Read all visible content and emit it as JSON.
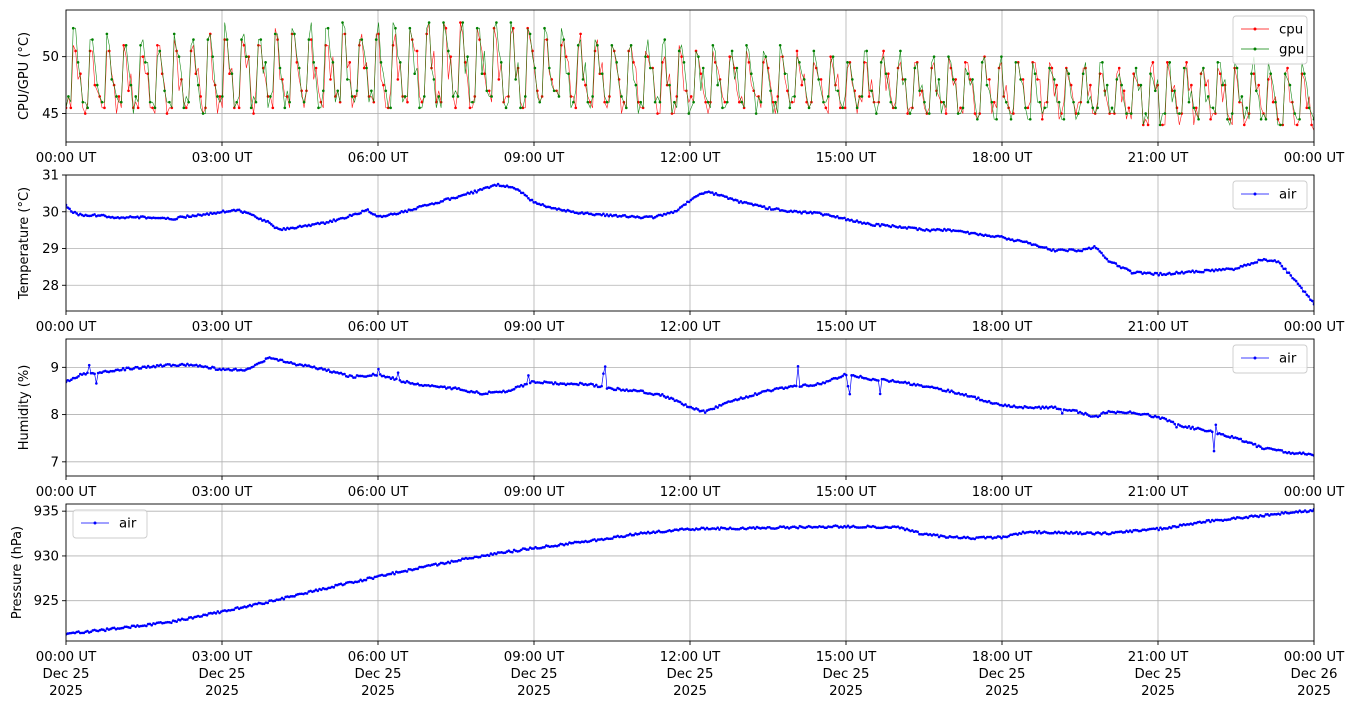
{
  "figure": {
    "background": "#ffffff",
    "grid": true,
    "colors": {
      "cpu": "#ff0000",
      "gpu": "#008000",
      "air": "#0000ff",
      "grid": "#b0b0b0",
      "axes": "#000000"
    }
  },
  "x_axis": {
    "range_hours": [
      0,
      24
    ],
    "tick_hours": [
      0,
      3,
      6,
      9,
      12,
      15,
      18,
      21,
      24
    ],
    "tick_time_labels": [
      "00:00 UT",
      "03:00 UT",
      "06:00 UT",
      "09:00 UT",
      "12:00 UT",
      "15:00 UT",
      "18:00 UT",
      "21:00 UT",
      "00:00 UT"
    ],
    "tick_date_labels": [
      "Dec 25",
      "Dec 25",
      "Dec 25",
      "Dec 25",
      "Dec 25",
      "Dec 25",
      "Dec 25",
      "Dec 25",
      "Dec 26"
    ],
    "tick_year_labels": [
      "2025",
      "2025",
      "2025",
      "2025",
      "2025",
      "2025",
      "2025",
      "2025",
      "2025"
    ]
  },
  "chart_data": [
    {
      "type": "line",
      "ylabel": "CPU/GPU (°C)",
      "ylim": [
        42.5,
        54.1
      ],
      "yticks": [
        45,
        50
      ],
      "ytick_labels": [
        "45",
        "50"
      ],
      "legend_position": "top-right",
      "grid": true,
      "x": [
        0,
        1.5,
        3,
        4.5,
        6,
        7.5,
        9,
        10.5,
        12,
        13.5,
        15,
        16.5,
        18,
        19.5,
        21,
        22.5,
        24
      ],
      "series": [
        {
          "name": "cpu",
          "color": "#ff0000",
          "low": [
            45,
            45,
            45,
            45.5,
            45.5,
            45.5,
            45.5,
            45,
            45,
            45,
            45,
            44.5,
            44.5,
            44.5,
            44,
            44,
            43.5
          ],
          "high": [
            51.5,
            51,
            52.5,
            52.5,
            52.5,
            53,
            53,
            51.5,
            51,
            50.5,
            50.5,
            50.5,
            50,
            49.5,
            49.5,
            49.5,
            49
          ]
        },
        {
          "name": "gpu",
          "color": "#008000",
          "low": [
            45,
            45,
            45,
            45.5,
            45.5,
            45.5,
            45.5,
            45,
            45,
            45,
            45,
            44.5,
            44.5,
            44.5,
            44,
            44,
            43.5
          ],
          "high": [
            52.5,
            51.5,
            53,
            53,
            53,
            53.5,
            53,
            52,
            51.5,
            51,
            50.5,
            50.5,
            50,
            49.5,
            49.5,
            50,
            49.5
          ]
        }
      ]
    },
    {
      "type": "line",
      "ylabel": "Temperature (°C)",
      "ylim": [
        27.3,
        31
      ],
      "yticks": [
        28,
        29,
        30,
        31
      ],
      "ytick_labels": [
        "28",
        "29",
        "30",
        "31"
      ],
      "legend_position": "top-right",
      "grid": true,
      "series": [
        {
          "name": "air",
          "color": "#0000ff",
          "x": [
            0,
            0.1,
            0.3,
            0.6,
            1,
            1.5,
            2,
            2.5,
            3,
            3.3,
            3.6,
            3.9,
            4.1,
            4.5,
            5,
            5.5,
            5.8,
            6,
            6.5,
            7,
            7.5,
            8,
            8.3,
            8.7,
            9,
            9.5,
            10,
            10.5,
            11,
            11.3,
            11.7,
            12,
            12.3,
            12.6,
            13,
            13.5,
            14,
            14.5,
            15,
            15.5,
            16,
            16.5,
            17,
            17.5,
            18,
            18.5,
            19,
            19.5,
            19.8,
            20,
            20.5,
            21,
            21.5,
            22,
            22.5,
            23,
            23.3,
            23.6,
            24
          ],
          "y": [
            30.2,
            30.0,
            29.9,
            29.9,
            29.85,
            29.85,
            29.8,
            29.9,
            30.0,
            30.05,
            29.9,
            29.7,
            29.5,
            29.6,
            29.7,
            29.9,
            30.05,
            29.85,
            30.0,
            30.2,
            30.4,
            30.6,
            30.75,
            30.6,
            30.25,
            30.05,
            29.95,
            29.9,
            29.85,
            29.85,
            30.0,
            30.3,
            30.55,
            30.45,
            30.25,
            30.1,
            30.0,
            29.95,
            29.8,
            29.65,
            29.6,
            29.5,
            29.5,
            29.4,
            29.3,
            29.15,
            28.95,
            28.95,
            29.05,
            28.7,
            28.35,
            28.3,
            28.35,
            28.4,
            28.45,
            28.7,
            28.65,
            28.2,
            27.5
          ]
        }
      ]
    },
    {
      "type": "line",
      "ylabel": "Humidity (%)",
      "ylim": [
        6.7,
        9.6
      ],
      "yticks": [
        7,
        8,
        9
      ],
      "ytick_labels": [
        "7",
        "8",
        "9"
      ],
      "legend_position": "top-right",
      "grid": true,
      "series": [
        {
          "name": "air",
          "color": "#0000ff",
          "x": [
            0,
            0.3,
            1,
            1.5,
            2,
            2.5,
            3,
            3.5,
            3.9,
            4.5,
            5,
            5.5,
            6,
            6.5,
            7,
            7.5,
            8,
            8.5,
            9,
            9.5,
            10,
            10.5,
            11,
            11.5,
            12,
            12.3,
            12.7,
            13,
            13.5,
            14,
            14.5,
            15,
            15.5,
            16,
            16.5,
            17,
            17.5,
            18,
            18.5,
            19,
            19.5,
            19.8,
            20,
            20.5,
            21,
            21.5,
            22,
            22.5,
            23,
            23.5,
            24
          ],
          "y": [
            8.7,
            8.85,
            8.95,
            9.0,
            9.05,
            9.05,
            8.95,
            8.95,
            9.2,
            9.05,
            8.95,
            8.8,
            8.85,
            8.7,
            8.6,
            8.55,
            8.45,
            8.5,
            8.7,
            8.65,
            8.65,
            8.55,
            8.5,
            8.4,
            8.15,
            8.05,
            8.25,
            8.35,
            8.5,
            8.6,
            8.65,
            8.85,
            8.75,
            8.7,
            8.6,
            8.5,
            8.35,
            8.2,
            8.15,
            8.15,
            8.05,
            7.95,
            8.05,
            8.05,
            7.95,
            7.75,
            7.65,
            7.5,
            7.3,
            7.2,
            7.15
          ]
        }
      ]
    },
    {
      "type": "line",
      "ylabel": "Pressure (hPa)",
      "ylim": [
        920.5,
        935.8
      ],
      "yticks": [
        925,
        930,
        935
      ],
      "ytick_labels": [
        "925",
        "930",
        "935"
      ],
      "legend_position": "top-left",
      "grid": true,
      "series": [
        {
          "name": "air",
          "color": "#0000ff",
          "x": [
            0,
            1,
            2,
            3,
            4,
            5,
            6,
            7,
            8,
            9,
            10,
            11,
            12,
            13,
            14,
            15,
            16,
            16.5,
            17,
            17.5,
            18,
            18.5,
            19,
            20,
            21,
            22,
            23,
            24
          ],
          "y": [
            921.3,
            921.9,
            922.6,
            923.8,
            925.0,
            926.4,
            927.7,
            928.9,
            930.0,
            930.9,
            931.6,
            932.5,
            933.0,
            933.1,
            933.2,
            933.3,
            933.2,
            932.4,
            932.1,
            932.0,
            932.1,
            932.7,
            932.6,
            932.5,
            933.0,
            933.9,
            934.5,
            935.1
          ]
        }
      ]
    }
  ]
}
